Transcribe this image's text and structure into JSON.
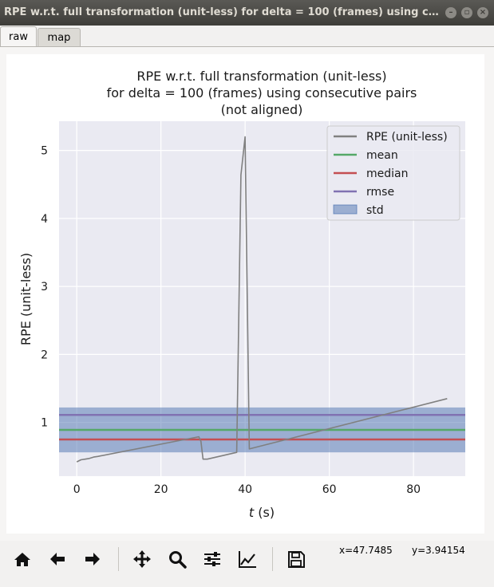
{
  "window": {
    "title": "RPE w.r.t. full transformation (unit-less) for delta = 100 (frames) using cons...",
    "buttons": {
      "minimize": "minimize-icon",
      "maximize": "maximize-icon",
      "close": "close-icon"
    }
  },
  "tabs": [
    {
      "label": "raw",
      "active": true
    },
    {
      "label": "map",
      "active": false
    }
  ],
  "toolbar": {
    "tools": [
      "home-icon",
      "back-arrow-icon",
      "forward-arrow-icon",
      "pan-icon",
      "zoom-icon",
      "subplots-icon",
      "edit-axis-icon",
      "save-icon"
    ],
    "coord_x": "x=47.7485",
    "coord_y": "y=3.94154"
  },
  "chart_data": {
    "type": "line",
    "title_lines": [
      "RPE w.r.t. full transformation (unit-less)",
      "for delta = 100 (frames) using consecutive pairs",
      "(not aligned)"
    ],
    "xlabel_italic": "t",
    "xlabel_rest": " (s)",
    "ylabel": "RPE (unit-less)",
    "xlim": [
      -4.2,
      92.3
    ],
    "ylim": [
      0.21,
      5.43
    ],
    "xticks": [
      0,
      20,
      40,
      60,
      80
    ],
    "yticks": [
      1,
      2,
      3,
      4,
      5
    ],
    "grid": true,
    "legend_position": "top-right",
    "legend": [
      {
        "label": "RPE (unit-less)",
        "kind": "line",
        "color": "#808080"
      },
      {
        "label": "mean",
        "kind": "line",
        "color": "#55a868"
      },
      {
        "label": "median",
        "kind": "line",
        "color": "#c44e52"
      },
      {
        "label": "rmse",
        "kind": "line",
        "color": "#8172b2"
      },
      {
        "label": "std",
        "kind": "patch",
        "color": "#4c72b0"
      }
    ],
    "series": [
      {
        "name": "RPE (unit-less)",
        "color": "#808080",
        "x": [
          0,
          1,
          2,
          3,
          4,
          5,
          29,
          29.5,
          30,
          31,
          38,
          39,
          40,
          41,
          88
        ],
        "y": [
          0.42,
          0.45,
          0.46,
          0.47,
          0.49,
          0.5,
          0.79,
          0.72,
          0.46,
          0.46,
          0.56,
          4.64,
          5.2,
          0.61,
          1.35
        ]
      }
    ],
    "stats": {
      "mean": 0.89,
      "median": 0.75,
      "rmse": 1.11,
      "std_band": [
        0.56,
        1.22
      ],
      "colors": {
        "mean": "#55a868",
        "median": "#c44e52",
        "rmse": "#8172b2",
        "std": "#4c72b0"
      }
    }
  }
}
